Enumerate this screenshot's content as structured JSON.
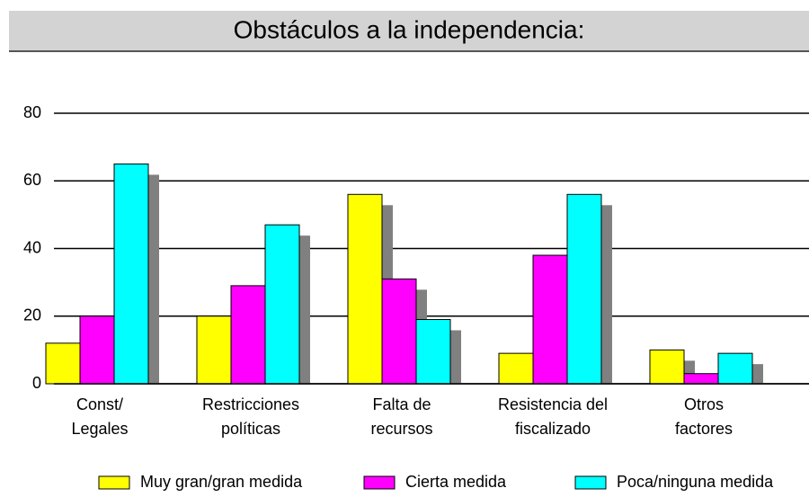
{
  "chart_data": {
    "type": "bar",
    "title": "Obstáculos a la independencia:",
    "categories": [
      [
        "Const/",
        "Legales"
      ],
      [
        "Restricciones",
        "políticas"
      ],
      [
        "Falta de",
        "recursos"
      ],
      [
        "Resistencia del",
        "fiscalizado"
      ],
      [
        "Otros",
        "factores"
      ]
    ],
    "series": [
      {
        "name": "Muy gran/gran medida",
        "color": "#ffff00",
        "values": [
          12,
          20,
          56,
          9,
          10
        ]
      },
      {
        "name": "Cierta medida",
        "color": "#ff00ff",
        "values": [
          20,
          29,
          31,
          38,
          3
        ]
      },
      {
        "name": "Poca/ninguna medida",
        "color": "#00ffff",
        "values": [
          65,
          47,
          19,
          56,
          9
        ]
      }
    ],
    "ylim": [
      0,
      80
    ],
    "yticks": [
      0,
      20,
      40,
      60,
      80
    ],
    "grid": true
  }
}
